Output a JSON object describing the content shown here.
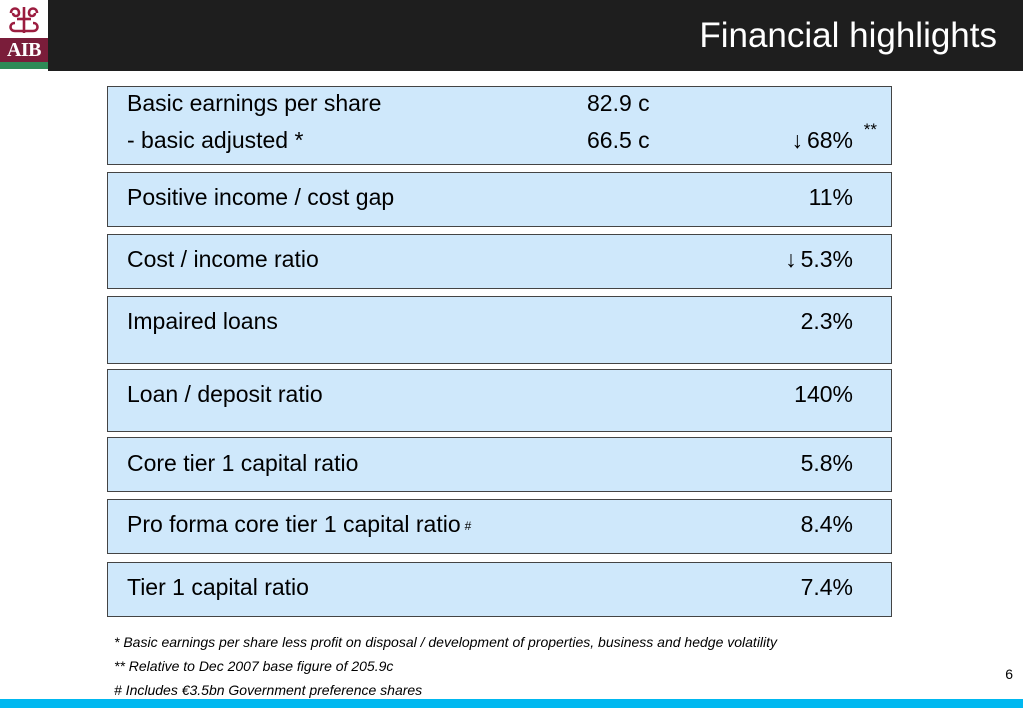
{
  "header": {
    "title": "Financial highlights",
    "logo_text": "AIB"
  },
  "boxes": [
    {
      "rows": [
        {
          "label": "Basic earnings per share",
          "value": "82.9 c",
          "right": ""
        },
        {
          "label": "- basic adjusted *",
          "value": "66.5 c",
          "arrow": "down",
          "right": "68%",
          "sup": "**"
        }
      ]
    },
    {
      "rows": [
        {
          "label": "Positive income / cost gap",
          "right": "11%"
        }
      ]
    },
    {
      "rows": [
        {
          "label": "Cost / income ratio",
          "arrow": "down",
          "right": "5.3%"
        }
      ]
    },
    {
      "rows": [
        {
          "label": "Impaired loans",
          "right": "2.3%"
        }
      ]
    },
    {
      "rows": [
        {
          "label": "Loan / deposit ratio",
          "right": "140%"
        }
      ]
    },
    {
      "rows": [
        {
          "label": "Core tier 1 capital ratio",
          "right": "5.8%"
        }
      ]
    },
    {
      "rows": [
        {
          "label": "Pro forma core tier 1 capital ratio",
          "label_sup": "#",
          "right": "8.4%"
        }
      ]
    },
    {
      "rows": [
        {
          "label": "Tier 1 capital ratio",
          "right": "7.4%"
        }
      ]
    }
  ],
  "footnotes": [
    "* Basic earnings per share less profit on disposal / development of properties, business and hedge volatility",
    "** Relative to Dec 2007 base figure of 205.9c",
    "# Includes €3.5bn Government preference shares"
  ],
  "page_number": "6",
  "colors": {
    "header_bg": "#1e1e1e",
    "box_bg": "#cfe8fb",
    "bottom_bar": "#00b8f0",
    "logo_maroon": "#7a1d3a"
  },
  "icons": {
    "arrow": "down-arrow-icon",
    "logo": "aib-crest-icon"
  }
}
